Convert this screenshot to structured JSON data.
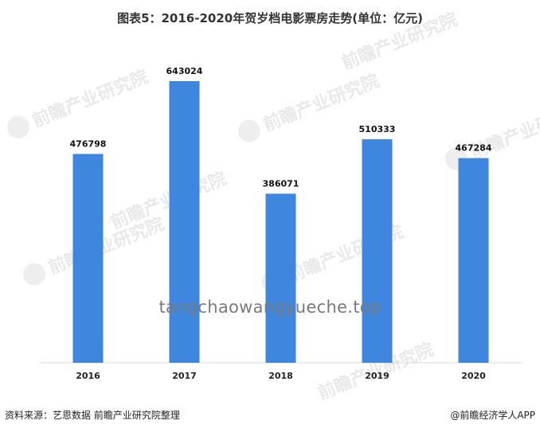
{
  "chart_data": {
    "type": "bar",
    "title": "图表5：2016-2020年贺岁档电影票房走势(单位：亿元)",
    "categories": [
      "2016",
      "2017",
      "2018",
      "2019",
      "2020"
    ],
    "values": [
      476798,
      643024,
      386071,
      510333,
      467284
    ],
    "data_labels": [
      "476798",
      "643024",
      "386071",
      "510333",
      "467284"
    ],
    "ylim": [
      0,
      700000
    ],
    "grid": false,
    "legend": "none",
    "bar_color": "#3f86de",
    "label_color": "#111111"
  },
  "watermark": {
    "text": "前瞻产业研究院",
    "site": "tangchaowangyueche.top"
  },
  "footer": {
    "source": "资料来源：艺恩数据 前瞻产业研究院整理",
    "brand": "@前瞻经济学人APP"
  }
}
